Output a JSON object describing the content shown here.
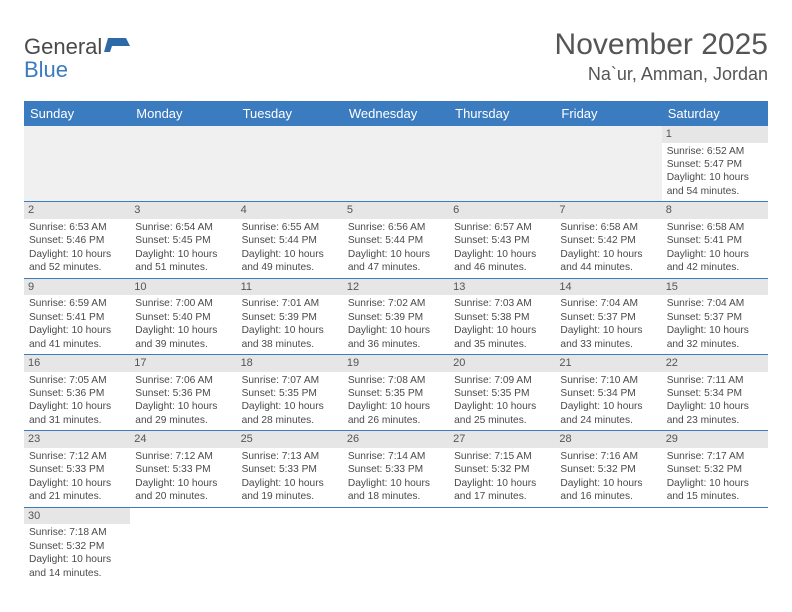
{
  "brand": {
    "word1": "General",
    "word2": "Blue"
  },
  "title": "November 2025",
  "location": "Na`ur, Amman, Jordan",
  "weekdays": [
    "Sunday",
    "Monday",
    "Tuesday",
    "Wednesday",
    "Thursday",
    "Friday",
    "Saturday"
  ],
  "colors": {
    "header_bg": "#3b7bbf",
    "header_text": "#ffffff",
    "text": "#4a4a4a",
    "daynum_bg": "#e6e6e6",
    "empty_bg": "#f0f0f0",
    "rule": "#3b7bbf"
  },
  "font": {
    "family": "Arial",
    "cell_pt": 10.2,
    "weekday_pt": 13,
    "title_pt": 30,
    "location_pt": 18
  },
  "leading_blanks": 6,
  "days": [
    {
      "n": 1,
      "sunrise": "6:52 AM",
      "sunset": "5:47 PM",
      "daylight": "10 hours and 54 minutes."
    },
    {
      "n": 2,
      "sunrise": "6:53 AM",
      "sunset": "5:46 PM",
      "daylight": "10 hours and 52 minutes."
    },
    {
      "n": 3,
      "sunrise": "6:54 AM",
      "sunset": "5:45 PM",
      "daylight": "10 hours and 51 minutes."
    },
    {
      "n": 4,
      "sunrise": "6:55 AM",
      "sunset": "5:44 PM",
      "daylight": "10 hours and 49 minutes."
    },
    {
      "n": 5,
      "sunrise": "6:56 AM",
      "sunset": "5:44 PM",
      "daylight": "10 hours and 47 minutes."
    },
    {
      "n": 6,
      "sunrise": "6:57 AM",
      "sunset": "5:43 PM",
      "daylight": "10 hours and 46 minutes."
    },
    {
      "n": 7,
      "sunrise": "6:58 AM",
      "sunset": "5:42 PM",
      "daylight": "10 hours and 44 minutes."
    },
    {
      "n": 8,
      "sunrise": "6:58 AM",
      "sunset": "5:41 PM",
      "daylight": "10 hours and 42 minutes."
    },
    {
      "n": 9,
      "sunrise": "6:59 AM",
      "sunset": "5:41 PM",
      "daylight": "10 hours and 41 minutes."
    },
    {
      "n": 10,
      "sunrise": "7:00 AM",
      "sunset": "5:40 PM",
      "daylight": "10 hours and 39 minutes."
    },
    {
      "n": 11,
      "sunrise": "7:01 AM",
      "sunset": "5:39 PM",
      "daylight": "10 hours and 38 minutes."
    },
    {
      "n": 12,
      "sunrise": "7:02 AM",
      "sunset": "5:39 PM",
      "daylight": "10 hours and 36 minutes."
    },
    {
      "n": 13,
      "sunrise": "7:03 AM",
      "sunset": "5:38 PM",
      "daylight": "10 hours and 35 minutes."
    },
    {
      "n": 14,
      "sunrise": "7:04 AM",
      "sunset": "5:37 PM",
      "daylight": "10 hours and 33 minutes."
    },
    {
      "n": 15,
      "sunrise": "7:04 AM",
      "sunset": "5:37 PM",
      "daylight": "10 hours and 32 minutes."
    },
    {
      "n": 16,
      "sunrise": "7:05 AM",
      "sunset": "5:36 PM",
      "daylight": "10 hours and 31 minutes."
    },
    {
      "n": 17,
      "sunrise": "7:06 AM",
      "sunset": "5:36 PM",
      "daylight": "10 hours and 29 minutes."
    },
    {
      "n": 18,
      "sunrise": "7:07 AM",
      "sunset": "5:35 PM",
      "daylight": "10 hours and 28 minutes."
    },
    {
      "n": 19,
      "sunrise": "7:08 AM",
      "sunset": "5:35 PM",
      "daylight": "10 hours and 26 minutes."
    },
    {
      "n": 20,
      "sunrise": "7:09 AM",
      "sunset": "5:35 PM",
      "daylight": "10 hours and 25 minutes."
    },
    {
      "n": 21,
      "sunrise": "7:10 AM",
      "sunset": "5:34 PM",
      "daylight": "10 hours and 24 minutes."
    },
    {
      "n": 22,
      "sunrise": "7:11 AM",
      "sunset": "5:34 PM",
      "daylight": "10 hours and 23 minutes."
    },
    {
      "n": 23,
      "sunrise": "7:12 AM",
      "sunset": "5:33 PM",
      "daylight": "10 hours and 21 minutes."
    },
    {
      "n": 24,
      "sunrise": "7:12 AM",
      "sunset": "5:33 PM",
      "daylight": "10 hours and 20 minutes."
    },
    {
      "n": 25,
      "sunrise": "7:13 AM",
      "sunset": "5:33 PM",
      "daylight": "10 hours and 19 minutes."
    },
    {
      "n": 26,
      "sunrise": "7:14 AM",
      "sunset": "5:33 PM",
      "daylight": "10 hours and 18 minutes."
    },
    {
      "n": 27,
      "sunrise": "7:15 AM",
      "sunset": "5:32 PM",
      "daylight": "10 hours and 17 minutes."
    },
    {
      "n": 28,
      "sunrise": "7:16 AM",
      "sunset": "5:32 PM",
      "daylight": "10 hours and 16 minutes."
    },
    {
      "n": 29,
      "sunrise": "7:17 AM",
      "sunset": "5:32 PM",
      "daylight": "10 hours and 15 minutes."
    },
    {
      "n": 30,
      "sunrise": "7:18 AM",
      "sunset": "5:32 PM",
      "daylight": "10 hours and 14 minutes."
    }
  ],
  "labels": {
    "sunrise": "Sunrise:",
    "sunset": "Sunset:",
    "daylight": "Daylight:"
  }
}
